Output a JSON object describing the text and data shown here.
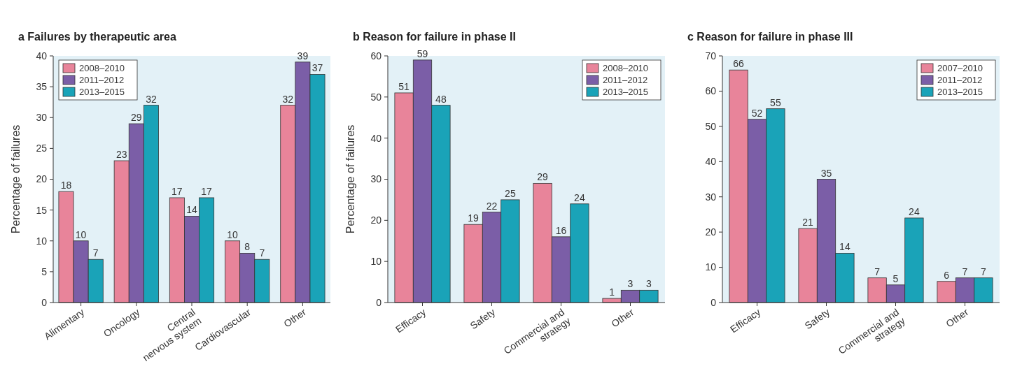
{
  "chart_data": [
    {
      "type": "bar",
      "title": "a Failures by therapeutic area",
      "ylabel": "Percentage of failures",
      "categories": [
        "Alimentary",
        "Oncology",
        "Central nervous system",
        "Cardiovascular",
        "Other"
      ],
      "series": [
        {
          "name": "2008–2010",
          "color": "#e8849a",
          "values": [
            18,
            23,
            17,
            10,
            32
          ]
        },
        {
          "name": "2011–2012",
          "color": "#7b5ea7",
          "values": [
            10,
            29,
            14,
            8,
            39
          ]
        },
        {
          "name": "2013–2015",
          "color": "#1aa3b8",
          "values": [
            7,
            32,
            17,
            7,
            37
          ]
        }
      ],
      "ylim": [
        0,
        40
      ],
      "yticks": [
        0,
        5,
        10,
        15,
        20,
        25,
        30,
        35,
        40
      ],
      "data_labels": true,
      "legend": "top left"
    },
    {
      "type": "bar",
      "title": "b Reason for failure in phase II",
      "ylabel": "Percentage of failures",
      "categories": [
        "Efficacy",
        "Safety",
        "Commercial and strategy",
        "Other"
      ],
      "series": [
        {
          "name": "2008–2010",
          "color": "#e8849a",
          "values": [
            51,
            19,
            29,
            1
          ]
        },
        {
          "name": "2011–2012",
          "color": "#7b5ea7",
          "values": [
            59,
            22,
            16,
            3
          ]
        },
        {
          "name": "2013–2015",
          "color": "#1aa3b8",
          "values": [
            48,
            25,
            24,
            3
          ]
        }
      ],
      "ylim": [
        0,
        60
      ],
      "yticks": [
        0,
        10,
        20,
        30,
        40,
        50,
        60
      ],
      "data_labels": true,
      "legend": "top right"
    },
    {
      "type": "bar",
      "title": "c Reason for failure in phase III",
      "categories": [
        "Efficacy",
        "Safety",
        "Commercial and strategy",
        "Other"
      ],
      "series": [
        {
          "name": "2007–2010",
          "color": "#e8849a",
          "values": [
            66,
            21,
            7,
            6
          ]
        },
        {
          "name": "2011–2012",
          "color": "#7b5ea7",
          "values": [
            52,
            35,
            5,
            7
          ]
        },
        {
          "name": "2013–2015",
          "color": "#1aa3b8",
          "values": [
            55,
            14,
            24,
            7
          ]
        }
      ],
      "ylim": [
        0,
        70
      ],
      "yticks": [
        0,
        10,
        20,
        30,
        40,
        50,
        60,
        70
      ],
      "data_labels": true,
      "legend": "top right"
    }
  ]
}
